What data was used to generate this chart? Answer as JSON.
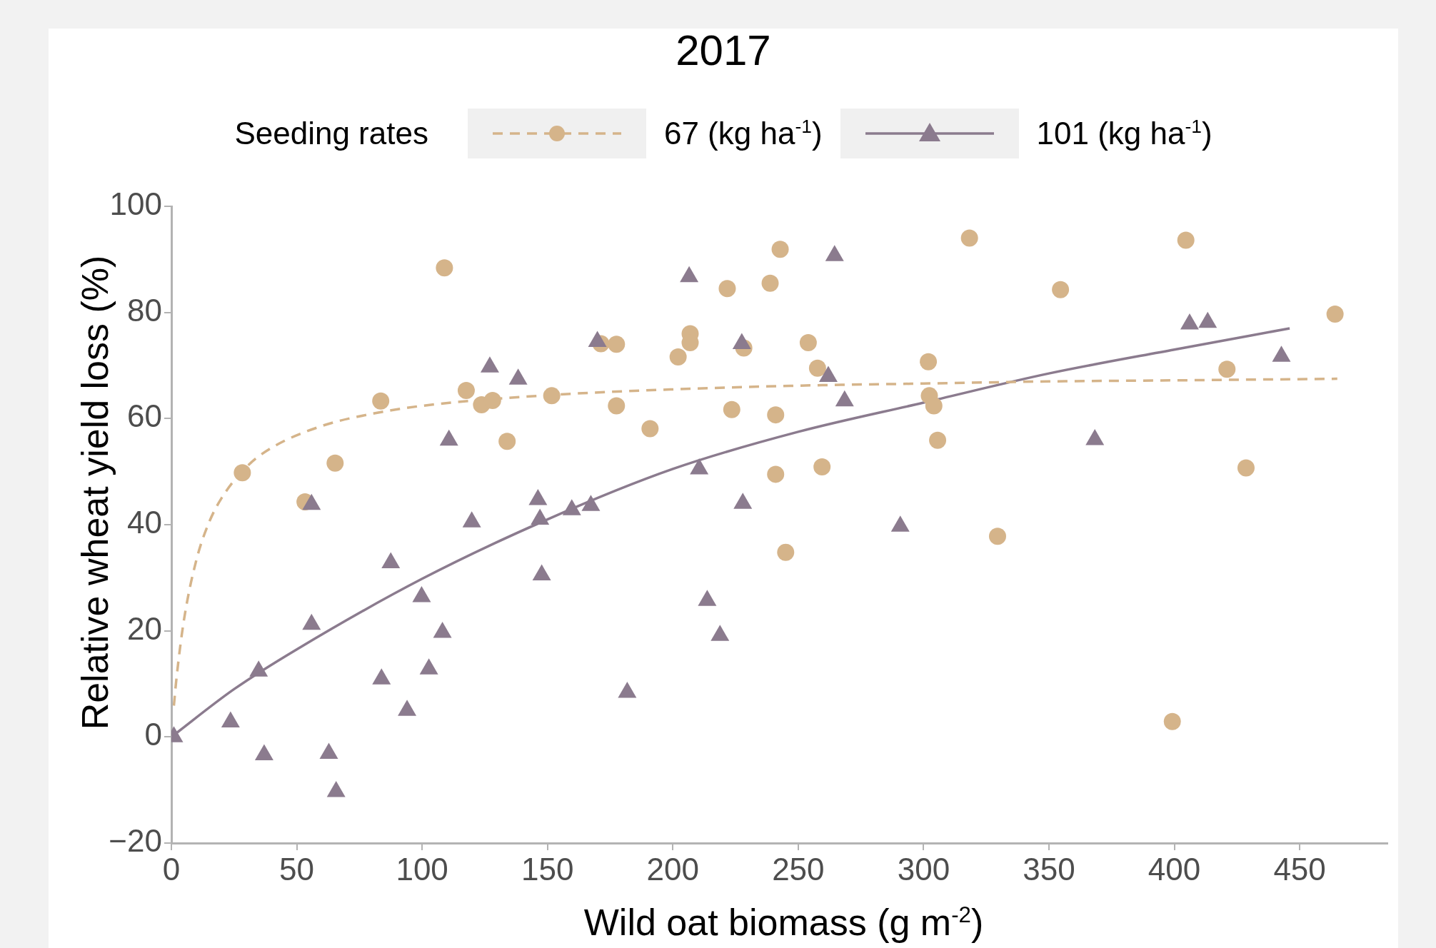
{
  "chart_data": {
    "type": "scatter",
    "title": "2017",
    "xlabel": "Wild oat biomass (g m$^{-2}$)",
    "ylabel": "Relative wheat yield loss (%)",
    "legend_title": "Seeding rates",
    "legend": "top",
    "grid": false,
    "xlim": [
      0,
      485
    ],
    "xticks": [
      0,
      50,
      100,
      150,
      200,
      250,
      300,
      350,
      400,
      450
    ],
    "ylim": [
      -20,
      100
    ],
    "yticks": [
      -20,
      0,
      20,
      40,
      60,
      80,
      100
    ],
    "series": [
      {
        "name": "67 (kg ha$^{-1}$)",
        "marker": "circle",
        "line_style": "dashed",
        "color": "#d5b48a",
        "x": [
          28.3,
          53.3,
          65.3,
          83.5,
          108.9,
          117.6,
          123.7,
          128.1,
          133.9,
          151.7,
          171.3,
          177.5,
          177.5,
          190.9,
          202.1,
          206.9,
          206.9,
          221.7,
          223.5,
          228.3,
          238.8,
          242.8,
          241,
          241,
          245,
          254,
          257.7,
          259.5,
          301.9,
          302.3,
          304.1,
          305.6,
          318.3,
          329.5,
          354.6,
          399.2,
          404.6,
          421,
          428.6,
          464.1
        ],
        "values": [
          49.8,
          44.3,
          51.6,
          63.3,
          88.4,
          65.3,
          62.6,
          63.4,
          55.7,
          64.3,
          74.1,
          74,
          62.4,
          58.1,
          71.6,
          76,
          74.3,
          84.5,
          61.7,
          73.3,
          85.5,
          91.9,
          60.7,
          49.5,
          34.8,
          74.3,
          69.5,
          50.9,
          70.7,
          64.3,
          62.4,
          55.9,
          94,
          37.8,
          84.3,
          2.9,
          93.6,
          69.3,
          50.7,
          79.7
        ]
      },
      {
        "name": "101 (kg ha$^{-1}$)",
        "marker": "triangle",
        "line_style": "solid",
        "color": "#8b7b8e",
        "x": [
          1,
          23.6,
          34.8,
          37,
          55.9,
          55.9,
          62.8,
          65.7,
          83.8,
          87.5,
          94,
          99.8,
          102.7,
          108.1,
          110.7,
          119.8,
          127,
          138.3,
          146.2,
          147,
          147.7,
          159.7,
          167.3,
          169.9,
          181.8,
          206.5,
          210.5,
          213.7,
          218.8,
          227.5,
          227.9,
          264.5,
          262,
          268.5,
          290.7,
          368.3,
          406.1,
          413.3,
          442.7
        ],
        "values": [
          0,
          2.8,
          12.4,
          -3.4,
          43.8,
          21.2,
          -3.1,
          -10.3,
          10.9,
          32.8,
          5,
          26.4,
          12.8,
          19.7,
          55.9,
          40.5,
          69.7,
          67.4,
          44.7,
          41,
          30.5,
          42.8,
          43.6,
          74.5,
          8.4,
          86.7,
          50.5,
          25.7,
          19.1,
          74.1,
          44,
          90.7,
          67.9,
          63.3,
          39.7,
          56,
          77.8,
          78.1,
          71.7
        ]
      },
      {
        "type": "line",
        "marker": "none",
        "line_style": "dashed",
        "color": "#d5b48a",
        "x": [
          1,
          2,
          5,
          10,
          15,
          20,
          30,
          40,
          60,
          80,
          100,
          150,
          200,
          250,
          300,
          350,
          400,
          465
        ],
        "values": [
          5.9,
          10.9,
          22,
          33.4,
          40.4,
          45,
          50.9,
          54.5,
          58.6,
          60.9,
          62.4,
          64.4,
          65.5,
          66.2,
          66.6,
          67,
          67.2,
          67.5
        ]
      },
      {
        "type": "line",
        "marker": "none",
        "line_style": "solid",
        "color": "#8b7b8e",
        "x": [
          0,
          25,
          50,
          100,
          150,
          200,
          250,
          300,
          350,
          400,
          446
        ],
        "values": [
          0,
          9,
          16.5,
          29.8,
          41,
          50.5,
          57.5,
          63,
          68.5,
          73,
          77
        ]
      }
    ]
  }
}
